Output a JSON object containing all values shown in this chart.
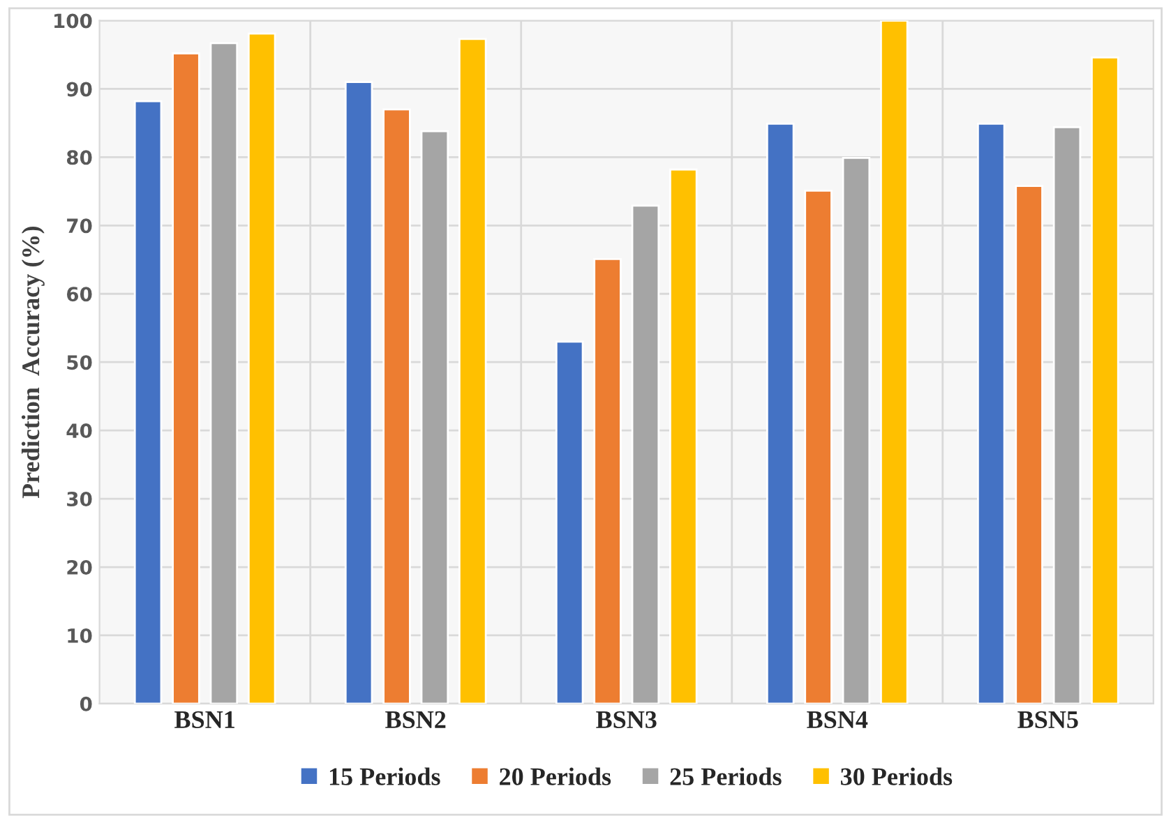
{
  "chart_data": {
    "type": "bar",
    "ylabel": "Prediction  Accuracy (%)",
    "categories": [
      "BSN1",
      "BSN2",
      "BSN3",
      "BSN4",
      "BSN5"
    ],
    "series": [
      {
        "name": "15 Periods",
        "color": "#4472c4",
        "values": [
          88.2,
          91.0,
          53.0,
          84.9,
          84.9
        ]
      },
      {
        "name": "20 Periods",
        "color": "#ed7d31",
        "values": [
          95.2,
          87.0,
          65.1,
          75.1,
          75.8
        ]
      },
      {
        "name": "25 Periods",
        "color": "#a5a5a5",
        "values": [
          96.7,
          83.8,
          72.9,
          79.9,
          84.4
        ]
      },
      {
        "name": "30 Periods",
        "color": "#ffc000",
        "values": [
          98.1,
          97.3,
          78.2,
          100,
          94.6
        ]
      }
    ],
    "ylim": [
      0,
      100
    ],
    "yticks": [
      0,
      10,
      20,
      30,
      40,
      50,
      60,
      70,
      80,
      90,
      100
    ],
    "grid": true,
    "legend": "bottom"
  }
}
